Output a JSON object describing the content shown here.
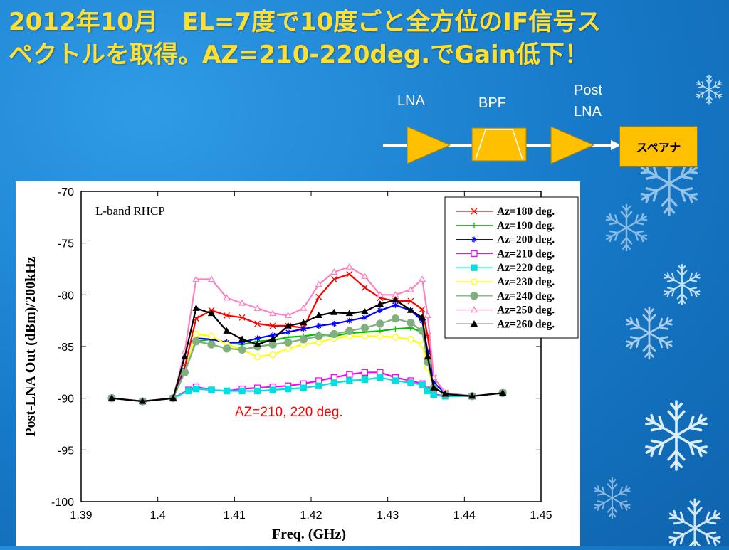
{
  "slide": {
    "title_line1": "2012年10月　EL=7度で10度ごと全方位のIF信号ス",
    "title_line2": "ペクトルを取得。AZ=210-220deg.でGain低下！"
  },
  "diagram": {
    "lna_label": "LNA",
    "bpf_label": "BPF",
    "post_lna_label_1": "Post",
    "post_lna_label_2": "LNA",
    "analyzer_label": "スペアナ",
    "colors": {
      "amp": "#ffc000",
      "line": "#ffffff"
    }
  },
  "chart_data": {
    "type": "line",
    "title": "L-band RHCP",
    "xlabel": "Freq. (GHz)",
    "ylabel": "Post-LNA Out (dBm)/200kHz",
    "xlim": [
      1.39,
      1.45
    ],
    "ylim": [
      -100,
      -70
    ],
    "x_ticks": [
      "1.39",
      "1.4",
      "1.41",
      "1.42",
      "1.43",
      "1.44",
      "1.45"
    ],
    "y_ticks": [
      "-70",
      "-75",
      "-80",
      "-85",
      "-90",
      "-95",
      "-100"
    ],
    "grid": false,
    "legend_position": "top-right",
    "annotation": "AZ=210, 220 deg.",
    "annotation_color": "#ff0000",
    "series": [
      {
        "name": "Az=180 deg.",
        "color": "#ff0000",
        "marker": "x",
        "x": [
          1.394,
          1.398,
          1.402,
          1.4035,
          1.405,
          1.407,
          1.409,
          1.411,
          1.413,
          1.415,
          1.417,
          1.419,
          1.421,
          1.423,
          1.425,
          1.427,
          1.429,
          1.431,
          1.433,
          1.4345,
          1.4352,
          1.436,
          1.4375,
          1.441,
          1.445
        ],
        "y": [
          -90,
          -90.3,
          -90,
          -87,
          -82.3,
          -81.5,
          -82,
          -82.2,
          -82.8,
          -83,
          -83,
          -83.2,
          -80.2,
          -78.5,
          -78,
          -79.3,
          -80.3,
          -80.6,
          -80.6,
          -81.4,
          -84,
          -88,
          -89.5,
          -89.8,
          -89.5
        ]
      },
      {
        "name": "Az=190 deg.",
        "color": "#00c000",
        "marker": "+",
        "x": [
          1.394,
          1.398,
          1.402,
          1.4035,
          1.405,
          1.407,
          1.409,
          1.411,
          1.413,
          1.415,
          1.417,
          1.419,
          1.421,
          1.423,
          1.425,
          1.427,
          1.429,
          1.431,
          1.433,
          1.4345,
          1.4352,
          1.436,
          1.4375,
          1.441,
          1.445
        ],
        "y": [
          -90,
          -90.3,
          -90,
          -87.5,
          -84.5,
          -84.3,
          -84.6,
          -84.8,
          -84.5,
          -84.4,
          -84.1,
          -84,
          -83.8,
          -84,
          -83.7,
          -83.6,
          -83.5,
          -83.3,
          -83.2,
          -83.6,
          -86,
          -88.5,
          -89.5,
          -89.8,
          -89.5
        ]
      },
      {
        "name": "Az=200 deg.",
        "color": "#0000ff",
        "marker": "*",
        "x": [
          1.394,
          1.398,
          1.402,
          1.4035,
          1.405,
          1.407,
          1.409,
          1.411,
          1.413,
          1.415,
          1.417,
          1.419,
          1.421,
          1.423,
          1.425,
          1.427,
          1.429,
          1.431,
          1.433,
          1.4345,
          1.4352,
          1.436,
          1.4375,
          1.441,
          1.445
        ],
        "y": [
          -90,
          -90.3,
          -90,
          -87.3,
          -84.2,
          -84.3,
          -84.6,
          -84.6,
          -84.2,
          -83.9,
          -83.6,
          -83.3,
          -83,
          -82.8,
          -82.5,
          -82.2,
          -81.5,
          -81,
          -81.5,
          -82.5,
          -85.5,
          -88.5,
          -89.5,
          -89.8,
          -89.5
        ]
      },
      {
        "name": "Az=210 deg.",
        "color": "#ff00ff",
        "marker": "square-open",
        "x": [
          1.394,
          1.398,
          1.402,
          1.404,
          1.405,
          1.407,
          1.409,
          1.411,
          1.413,
          1.415,
          1.417,
          1.419,
          1.421,
          1.423,
          1.425,
          1.427,
          1.429,
          1.431,
          1.433,
          1.4345,
          1.4352,
          1.436,
          1.4375,
          1.441,
          1.445
        ],
        "y": [
          -90,
          -90.3,
          -90,
          -89.2,
          -88.9,
          -89.2,
          -89.3,
          -89.1,
          -89,
          -88.9,
          -88.8,
          -88.6,
          -88.3,
          -88,
          -87.7,
          -87.5,
          -87.5,
          -88,
          -88.3,
          -88.6,
          -89.2,
          -89.6,
          -89.8,
          -89.8,
          -89.5
        ]
      },
      {
        "name": "Az=220 deg.",
        "color": "#00e0e0",
        "marker": "square-filled",
        "x": [
          1.394,
          1.398,
          1.402,
          1.404,
          1.405,
          1.407,
          1.409,
          1.411,
          1.413,
          1.415,
          1.417,
          1.419,
          1.421,
          1.423,
          1.425,
          1.427,
          1.429,
          1.431,
          1.433,
          1.4345,
          1.4352,
          1.436,
          1.4375,
          1.441,
          1.445
        ],
        "y": [
          -90,
          -90.3,
          -90,
          -89.3,
          -89.1,
          -89.2,
          -89.3,
          -89.3,
          -89.3,
          -89.2,
          -89.1,
          -89,
          -88.8,
          -88.5,
          -88.3,
          -88.2,
          -88,
          -88.3,
          -88.5,
          -88.7,
          -89.3,
          -89.7,
          -89.8,
          -89.8,
          -89.5
        ]
      },
      {
        "name": "Az=230 deg.",
        "color": "#ffff00",
        "marker": "circle-open",
        "x": [
          1.394,
          1.398,
          1.402,
          1.4035,
          1.405,
          1.407,
          1.409,
          1.411,
          1.413,
          1.415,
          1.417,
          1.419,
          1.421,
          1.423,
          1.425,
          1.427,
          1.429,
          1.431,
          1.433,
          1.4345,
          1.4352,
          1.436,
          1.4375,
          1.441,
          1.445
        ],
        "y": [
          -90,
          -90.3,
          -90,
          -87.5,
          -83.8,
          -84,
          -84.8,
          -85.3,
          -86,
          -85.8,
          -85.2,
          -84.8,
          -84.6,
          -84.2,
          -84,
          -84,
          -84,
          -84.1,
          -84.3,
          -84.8,
          -87,
          -89,
          -89.6,
          -89.8,
          -89.5
        ]
      },
      {
        "name": "Az=240 deg.",
        "color": "#80b080",
        "marker": "circle-filled",
        "x": [
          1.394,
          1.398,
          1.402,
          1.4035,
          1.405,
          1.407,
          1.409,
          1.411,
          1.413,
          1.415,
          1.417,
          1.419,
          1.421,
          1.423,
          1.425,
          1.427,
          1.429,
          1.431,
          1.433,
          1.4345,
          1.4352,
          1.436,
          1.4375,
          1.441,
          1.445
        ],
        "y": [
          -90,
          -90.3,
          -90,
          -87.5,
          -84.5,
          -84.8,
          -85.2,
          -85.3,
          -85,
          -84.8,
          -84.6,
          -84.3,
          -84,
          -83.8,
          -83.5,
          -83.2,
          -82.8,
          -82.3,
          -82.7,
          -83.5,
          -86.5,
          -89,
          -89.6,
          -89.8,
          -89.5
        ]
      },
      {
        "name": "Az=250 deg.",
        "color": "#ff80c0",
        "marker": "triangle-open",
        "x": [
          1.394,
          1.398,
          1.402,
          1.4035,
          1.405,
          1.407,
          1.409,
          1.411,
          1.413,
          1.415,
          1.417,
          1.419,
          1.421,
          1.423,
          1.425,
          1.427,
          1.429,
          1.431,
          1.433,
          1.4345,
          1.4352,
          1.436,
          1.4375,
          1.441,
          1.445
        ],
        "y": [
          -90,
          -90.3,
          -90,
          -85.5,
          -78.5,
          -78.5,
          -80.3,
          -80.8,
          -81.3,
          -81.8,
          -82,
          -81.3,
          -79,
          -77.8,
          -77.3,
          -78.2,
          -80,
          -80,
          -79.5,
          -78.5,
          -82,
          -88,
          -89.5,
          -89.8,
          -89.5
        ]
      },
      {
        "name": "Az=260 deg.",
        "color": "#000000",
        "marker": "triangle-filled",
        "x": [
          1.394,
          1.398,
          1.402,
          1.4035,
          1.405,
          1.407,
          1.409,
          1.411,
          1.413,
          1.415,
          1.417,
          1.419,
          1.421,
          1.423,
          1.425,
          1.427,
          1.429,
          1.431,
          1.433,
          1.4345,
          1.4352,
          1.436,
          1.4375,
          1.441,
          1.445
        ],
        "y": [
          -90,
          -90.3,
          -90,
          -86,
          -81.3,
          -81.8,
          -83.5,
          -84.3,
          -84.8,
          -84.3,
          -83,
          -82.7,
          -82,
          -81.7,
          -81.8,
          -81.6,
          -80.9,
          -80.5,
          -81.5,
          -82.2,
          -86,
          -89,
          -89.6,
          -89.8,
          -89.5
        ]
      }
    ]
  }
}
